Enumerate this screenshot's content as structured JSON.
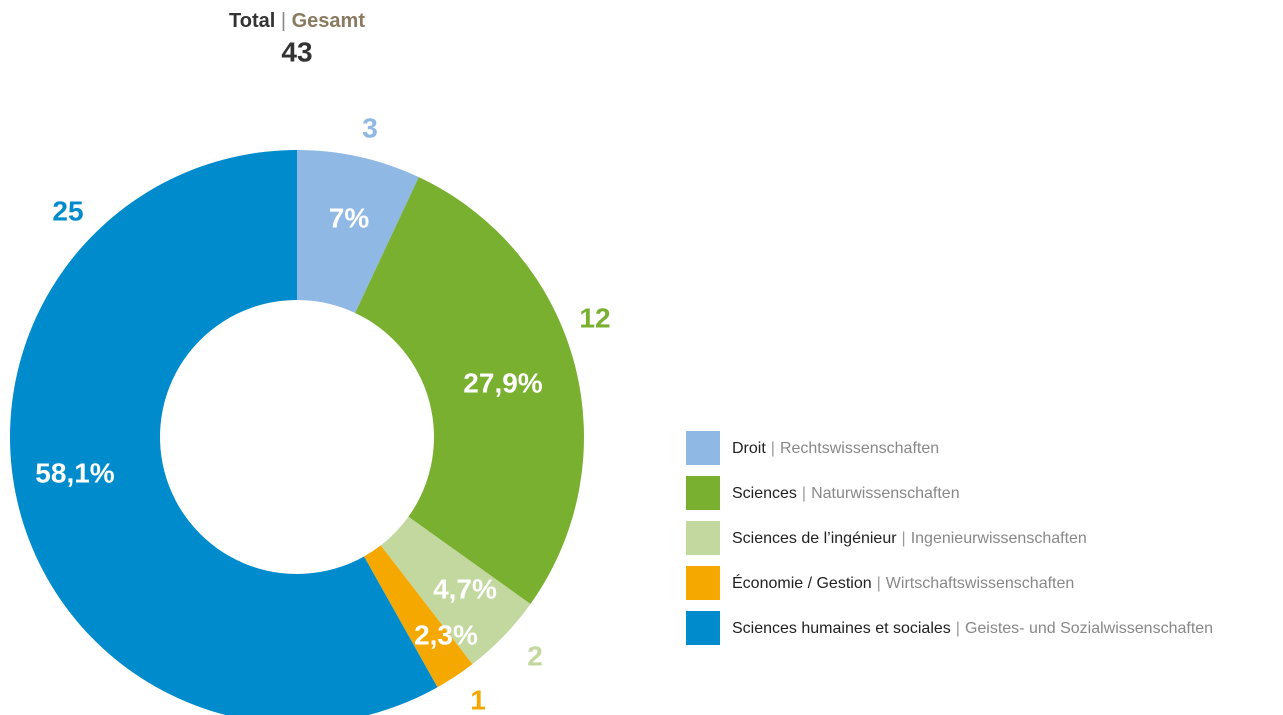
{
  "chart_data": {
    "type": "donut",
    "total_label": "Total",
    "separator": "|",
    "total_label_de": "Gesamt",
    "total": 43,
    "categories": [
      "Droit",
      "Sciences",
      "Sciences de l’ingénieur",
      "Économie / Gestion",
      "Sciences humaines et sociales"
    ],
    "categories_de": [
      "Rechtswissenschaften",
      "Naturwissenschaften",
      "Ingenieurwissenschaften",
      "Wirtschaftswissenschaften",
      "Geistes- und Sozialwissenschaften"
    ],
    "values": [
      3,
      12,
      2,
      1,
      25
    ],
    "shares": [
      7,
      27.9,
      4.7,
      2.3,
      58.1
    ],
    "share_labels": [
      "7%",
      "27,9%",
      "4,7%",
      "2,3%",
      "58,1%"
    ],
    "colors": [
      "#8fb8e4",
      "#7ab030",
      "#c2d89e",
      "#f5a800",
      "#008ccc"
    ]
  }
}
